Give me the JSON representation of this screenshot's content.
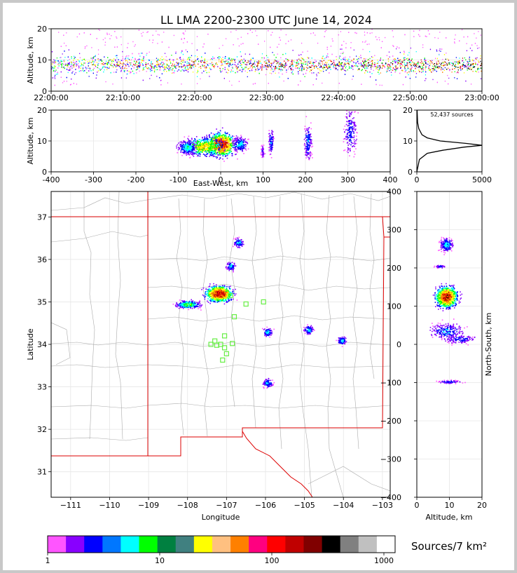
{
  "title": "LL LMA 2200-2300 UTC June 14, 2024",
  "panels": {
    "time_height": {
      "ylabel": "Altitude, km",
      "ylim": [
        0,
        20
      ],
      "yticks": [
        "0",
        "10",
        "20"
      ],
      "xticks": [
        "22:00:00",
        "22:10:00",
        "22:20:00",
        "22:30:00",
        "22:40:00",
        "22:50:00",
        "23:00:00"
      ]
    },
    "ew_height": {
      "ylabel": "Altitude, km",
      "xlabel": "East-West, km",
      "xlim": [
        -400,
        400
      ],
      "ylim": [
        0,
        20
      ],
      "xticks": [
        "-400",
        "-300",
        "-200",
        "-100",
        "0",
        "100",
        "200",
        "300",
        "400"
      ],
      "yticks": [
        "0",
        "10",
        "20"
      ]
    },
    "histogram": {
      "annotation": "52,437 sources",
      "xticks": [
        "0",
        "5000"
      ],
      "yticks": [
        "0",
        "10",
        "20"
      ],
      "xlim": [
        0,
        5000
      ],
      "ylim": [
        0,
        20
      ]
    },
    "map": {
      "xlabel": "Longitude",
      "ylabel": "Latitude",
      "xlim": [
        -111.5,
        -102.8
      ],
      "ylim": [
        30.4,
        37.6
      ],
      "xticks": [
        "−111",
        "−110",
        "−109",
        "−108",
        "−107",
        "−106",
        "−105",
        "−104",
        "−103"
      ],
      "yticks": [
        "31",
        "32",
        "33",
        "34",
        "35",
        "36",
        "37"
      ]
    },
    "ns_height": {
      "xlabel": "Altitude, km",
      "ylabel": "North-South, km",
      "xlim": [
        0,
        20
      ],
      "ylim": [
        -400,
        400
      ],
      "xticks": [
        "0",
        "10",
        "20"
      ],
      "yticks": [
        "−400",
        "−300",
        "−200",
        "−100",
        "0",
        "100",
        "200",
        "300",
        "400"
      ]
    }
  },
  "colorbar": {
    "label": "Sources/7 km²",
    "ticks": [
      "1",
      "10",
      "100",
      "1000"
    ],
    "colors": [
      "#ff55ff",
      "#8800ff",
      "#0000ff",
      "#0077ff",
      "#00ffff",
      "#00ff00",
      "#008040",
      "#408080",
      "#ffff00",
      "#ffc080",
      "#ff8000",
      "#ff0080",
      "#ff0000",
      "#c00000",
      "#800000",
      "#000000",
      "#808080",
      "#c0c0c0",
      "#ffffff"
    ]
  },
  "chart_data": {
    "type": "scatter",
    "title": "LL LMA 2200-2300 UTC June 14, 2024",
    "total_sources": 52437,
    "time_range": [
      "22:00:00",
      "23:00:00"
    ],
    "altitude_profile_km": [
      [
        0,
        0
      ],
      [
        4,
        200
      ],
      [
        6,
        800
      ],
      [
        7,
        2000
      ],
      [
        8,
        3600
      ],
      [
        8.6,
        5000
      ],
      [
        9.2,
        3800
      ],
      [
        10,
        1800
      ],
      [
        11,
        800
      ],
      [
        12,
        400
      ],
      [
        14,
        150
      ],
      [
        16,
        60
      ],
      [
        20,
        20
      ]
    ],
    "map_clusters": [
      {
        "lon": -107.2,
        "lat": 35.2,
        "intensity": "high"
      },
      {
        "lon": -108.0,
        "lat": 34.95,
        "intensity": "medium"
      },
      {
        "lon": -106.7,
        "lat": 36.4,
        "intensity": "low"
      },
      {
        "lon": -106.9,
        "lat": 35.85,
        "intensity": "low"
      },
      {
        "lon": -104.9,
        "lat": 34.35,
        "intensity": "low"
      },
      {
        "lon": -104.05,
        "lat": 34.1,
        "intensity": "low"
      },
      {
        "lon": -105.95,
        "lat": 33.1,
        "intensity": "low"
      },
      {
        "lon": -105.95,
        "lat": 34.3,
        "intensity": "low"
      }
    ],
    "stations": [
      {
        "lon": -106.9,
        "lat": 35.15
      },
      {
        "lon": -106.5,
        "lat": 34.95
      },
      {
        "lon": -106.05,
        "lat": 35.0
      },
      {
        "lon": -106.8,
        "lat": 34.65
      },
      {
        "lon": -107.05,
        "lat": 34.2
      },
      {
        "lon": -107.3,
        "lat": 34.08
      },
      {
        "lon": -107.4,
        "lat": 34.0
      },
      {
        "lon": -107.15,
        "lat": 34.0
      },
      {
        "lon": -106.85,
        "lat": 34.02
      },
      {
        "lon": -107.05,
        "lat": 33.92
      },
      {
        "lon": -107.0,
        "lat": 33.78
      },
      {
        "lon": -107.1,
        "lat": 33.63
      },
      {
        "lon": -107.25,
        "lat": 33.98
      }
    ]
  }
}
